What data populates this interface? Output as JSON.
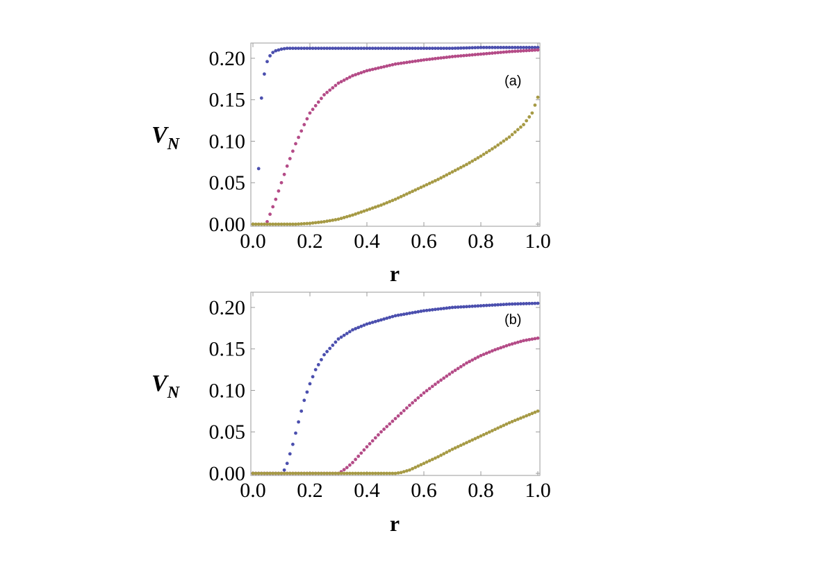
{
  "chart_data": [
    {
      "type": "scatter",
      "panel_label": "(a)",
      "xlabel": "r",
      "ylabel_main": "V",
      "ylabel_sub": "N",
      "xlim": [
        0,
        1
      ],
      "ylim": [
        0,
        0.21
      ],
      "xticks": [
        "0.0",
        "0.2",
        "0.4",
        "0.6",
        "0.8",
        "1.0"
      ],
      "yticks": [
        "0.00",
        "0.05",
        "0.10",
        "0.15",
        "0.20"
      ],
      "xtick_values": [
        0,
        0.2,
        0.4,
        0.6,
        0.8,
        1.0
      ],
      "ytick_values": [
        0,
        0.05,
        0.1,
        0.15,
        0.2
      ],
      "grid": false,
      "series": [
        {
          "color": "#4b4fae",
          "x": [
            0.02,
            0.03,
            0.04,
            0.05,
            0.06,
            0.07,
            0.08,
            0.09,
            0.1,
            0.12,
            0.15,
            0.2,
            0.3,
            0.4,
            0.5,
            0.6,
            0.7,
            0.8,
            0.9,
            1.0
          ],
          "y": [
            0.067,
            0.152,
            0.181,
            0.196,
            0.203,
            0.207,
            0.209,
            0.21,
            0.211,
            0.212,
            0.212,
            0.212,
            0.212,
            0.212,
            0.212,
            0.212,
            0.212,
            0.213,
            0.213,
            0.213
          ]
        },
        {
          "color": "#b44b87",
          "x": [
            0.05,
            0.06,
            0.08,
            0.1,
            0.12,
            0.15,
            0.18,
            0.2,
            0.25,
            0.3,
            0.35,
            0.4,
            0.5,
            0.6,
            0.7,
            0.8,
            0.9,
            1.0
          ],
          "y": [
            0.003,
            0.012,
            0.03,
            0.05,
            0.07,
            0.097,
            0.12,
            0.134,
            0.156,
            0.17,
            0.179,
            0.185,
            0.193,
            0.198,
            0.202,
            0.205,
            0.208,
            0.21
          ]
        },
        {
          "color": "#a69a45",
          "x": [
            0.0,
            0.05,
            0.1,
            0.15,
            0.2,
            0.25,
            0.3,
            0.35,
            0.4,
            0.45,
            0.5,
            0.55,
            0.6,
            0.65,
            0.7,
            0.75,
            0.8,
            0.85,
            0.9,
            0.95,
            0.98,
            1.0
          ],
          "y": [
            0.0,
            0.0,
            0.0,
            0.0,
            0.001,
            0.003,
            0.006,
            0.011,
            0.017,
            0.023,
            0.03,
            0.038,
            0.046,
            0.054,
            0.063,
            0.072,
            0.082,
            0.093,
            0.105,
            0.12,
            0.134,
            0.153
          ]
        }
      ]
    },
    {
      "type": "scatter",
      "panel_label": "(b)",
      "xlabel": "r",
      "ylabel_main": "V",
      "ylabel_sub": "N",
      "xlim": [
        0,
        1
      ],
      "ylim": [
        0,
        0.21
      ],
      "xticks": [
        "0.0",
        "0.2",
        "0.4",
        "0.6",
        "0.8",
        "1.0"
      ],
      "yticks": [
        "0.00",
        "0.05",
        "0.10",
        "0.15",
        "0.20"
      ],
      "xtick_values": [
        0,
        0.2,
        0.4,
        0.6,
        0.8,
        1.0
      ],
      "ytick_values": [
        0,
        0.05,
        0.1,
        0.15,
        0.2
      ],
      "grid": false,
      "series": [
        {
          "color": "#4b4fae",
          "x": [
            0.0,
            0.05,
            0.1,
            0.11,
            0.12,
            0.14,
            0.16,
            0.18,
            0.2,
            0.22,
            0.25,
            0.3,
            0.35,
            0.4,
            0.5,
            0.6,
            0.7,
            0.8,
            0.9,
            1.0
          ],
          "y": [
            0.0,
            0.0,
            0.0,
            0.004,
            0.012,
            0.035,
            0.062,
            0.088,
            0.108,
            0.125,
            0.143,
            0.162,
            0.173,
            0.18,
            0.19,
            0.196,
            0.2,
            0.202,
            0.204,
            0.205
          ]
        },
        {
          "color": "#b44b87",
          "x": [
            0.0,
            0.1,
            0.2,
            0.3,
            0.31,
            0.33,
            0.35,
            0.4,
            0.45,
            0.5,
            0.55,
            0.6,
            0.65,
            0.7,
            0.75,
            0.8,
            0.85,
            0.9,
            0.95,
            1.0
          ],
          "y": [
            0.0,
            0.0,
            0.0,
            0.0,
            0.002,
            0.007,
            0.013,
            0.032,
            0.05,
            0.066,
            0.082,
            0.097,
            0.11,
            0.122,
            0.133,
            0.142,
            0.149,
            0.155,
            0.16,
            0.163
          ]
        },
        {
          "color": "#a69a45",
          "x": [
            0.0,
            0.1,
            0.2,
            0.3,
            0.4,
            0.5,
            0.52,
            0.55,
            0.6,
            0.65,
            0.7,
            0.75,
            0.8,
            0.85,
            0.9,
            0.95,
            1.0
          ],
          "y": [
            0.0,
            0.0,
            0.0,
            0.0,
            0.0,
            0.0,
            0.001,
            0.004,
            0.012,
            0.02,
            0.029,
            0.037,
            0.045,
            0.053,
            0.061,
            0.068,
            0.075
          ]
        }
      ]
    }
  ]
}
